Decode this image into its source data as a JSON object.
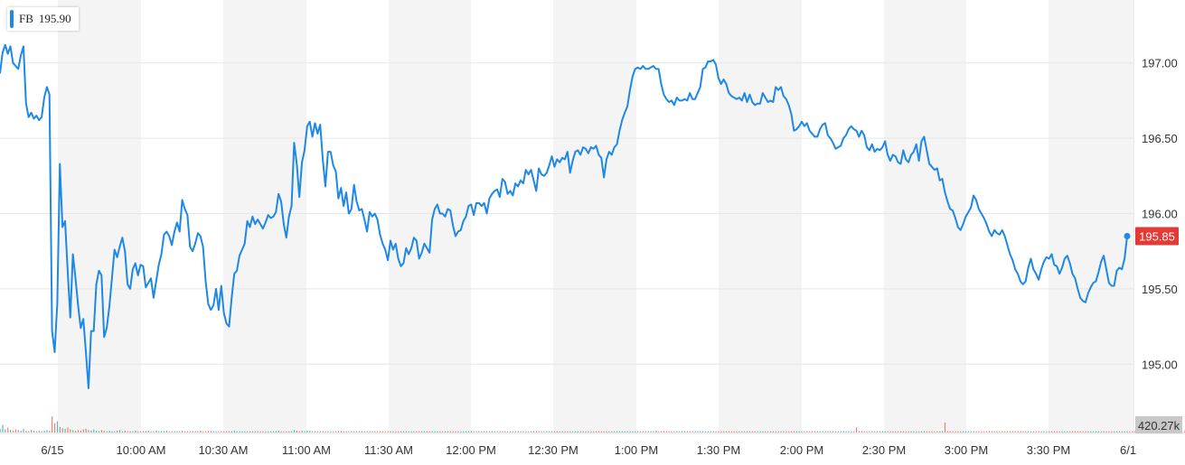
{
  "ticker": {
    "symbol": "FB",
    "value": "195.90",
    "color": "#1e88e5"
  },
  "colors": {
    "line": "#1e88e5",
    "band": "#f4f4f4",
    "grid": "#e6e6e6",
    "badge": "#e53935",
    "volume_up": "#26a69a",
    "volume_down": "#ef5350",
    "volume_badge": "#c8c8c8"
  },
  "chart_data": {
    "type": "line",
    "series": [
      {
        "name": "FB",
        "values": [
          196.93,
          197.07,
          197.12,
          197.06,
          197.11,
          197.0,
          196.98,
          196.96,
          197.05,
          197.11,
          196.73,
          196.64,
          196.67,
          196.63,
          196.65,
          196.62,
          196.64,
          196.77,
          196.84,
          196.79,
          195.22,
          195.08,
          195.4,
          196.33,
          195.91,
          195.95,
          195.62,
          195.31,
          195.73,
          195.57,
          195.39,
          195.24,
          195.3,
          195.08,
          194.84,
          195.22,
          195.22,
          195.53,
          195.62,
          195.59,
          195.18,
          195.24,
          195.38,
          195.57,
          195.76,
          195.71,
          195.78,
          195.84,
          195.75,
          195.53,
          195.5,
          195.63,
          195.67,
          195.59,
          195.66,
          195.65,
          195.51,
          195.54,
          195.57,
          195.44,
          195.55,
          195.66,
          195.73,
          195.86,
          195.88,
          195.85,
          195.79,
          195.88,
          195.94,
          195.88,
          196.09,
          196.03,
          195.99,
          195.78,
          195.75,
          195.8,
          195.87,
          195.85,
          195.78,
          195.55,
          195.4,
          195.36,
          195.39,
          195.5,
          195.36,
          195.52,
          195.34,
          195.27,
          195.25,
          195.44,
          195.6,
          195.62,
          195.72,
          195.76,
          195.8,
          195.95,
          195.91,
          195.98,
          195.93,
          195.96,
          195.93,
          195.9,
          195.94,
          195.99,
          195.97,
          195.98,
          196.01,
          196.13,
          196.08,
          195.93,
          195.84,
          195.98,
          196.05,
          196.47,
          196.33,
          196.11,
          196.34,
          196.42,
          196.58,
          196.61,
          196.51,
          196.6,
          196.53,
          196.59,
          196.36,
          196.18,
          196.41,
          196.41,
          196.32,
          196.28,
          196.1,
          196.17,
          196.05,
          196.14,
          196.0,
          196.03,
          196.19,
          196.08,
          196.02,
          196.03,
          195.96,
          195.88,
          196.01,
          195.98,
          196.0,
          195.96,
          195.86,
          195.8,
          195.76,
          195.69,
          195.82,
          195.76,
          195.8,
          195.7,
          195.65,
          195.67,
          195.77,
          195.73,
          195.77,
          195.84,
          195.82,
          195.7,
          195.74,
          195.8,
          195.77,
          195.74,
          195.96,
          196.03,
          196.06,
          196.0,
          196.0,
          195.98,
          196.03,
          196.02,
          195.92,
          195.85,
          195.88,
          195.89,
          195.95,
          195.98,
          196.05,
          196.06,
          195.99,
          196.07,
          196.07,
          196.05,
          196.07,
          196.0,
          196.1,
          196.13,
          196.15,
          196.16,
          196.11,
          196.23,
          196.21,
          196.13,
          196.15,
          196.12,
          196.2,
          196.18,
          196.22,
          196.2,
          196.29,
          196.26,
          196.29,
          196.22,
          196.15,
          196.3,
          196.26,
          196.25,
          196.27,
          196.32,
          196.38,
          196.31,
          196.36,
          196.34,
          196.37,
          196.36,
          196.41,
          196.27,
          196.35,
          196.41,
          196.42,
          196.39,
          196.44,
          196.43,
          196.4,
          196.44,
          196.43,
          196.45,
          196.39,
          196.37,
          196.24,
          196.36,
          196.41,
          196.39,
          196.44,
          196.46,
          196.55,
          196.62,
          196.67,
          196.71,
          196.82,
          196.91,
          196.96,
          196.97,
          196.96,
          196.98,
          196.96,
          196.96,
          196.97,
          196.98,
          196.96,
          196.96,
          196.86,
          196.79,
          196.76,
          196.74,
          196.75,
          196.72,
          196.77,
          196.75,
          196.75,
          196.76,
          196.75,
          196.8,
          196.76,
          196.76,
          196.8,
          196.84,
          196.96,
          196.97,
          197.01,
          197.01,
          197.02,
          196.99,
          196.9,
          196.86,
          196.89,
          196.86,
          196.8,
          196.78,
          196.77,
          196.76,
          196.77,
          196.75,
          196.8,
          196.74,
          196.79,
          196.74,
          196.72,
          196.73,
          196.73,
          196.8,
          196.77,
          196.74,
          196.75,
          196.74,
          196.84,
          196.82,
          196.84,
          196.78,
          196.76,
          196.72,
          196.66,
          196.55,
          196.56,
          196.58,
          196.61,
          196.58,
          196.6,
          196.55,
          196.53,
          196.51,
          196.51,
          196.56,
          196.59,
          196.6,
          196.52,
          196.5,
          196.47,
          196.43,
          196.44,
          196.45,
          196.5,
          196.52,
          196.56,
          196.58,
          196.56,
          196.55,
          196.51,
          196.55,
          196.52,
          196.44,
          196.42,
          196.46,
          196.41,
          196.43,
          196.42,
          196.44,
          196.48,
          196.39,
          196.35,
          196.39,
          196.38,
          196.34,
          196.33,
          196.42,
          196.36,
          196.34,
          196.39,
          196.41,
          196.46,
          196.35,
          196.48,
          196.51,
          196.42,
          196.33,
          196.31,
          196.29,
          196.3,
          196.22,
          196.23,
          196.14,
          196.08,
          196.03,
          196.02,
          195.97,
          195.91,
          195.89,
          195.93,
          195.98,
          196.01,
          196.04,
          196.12,
          196.09,
          196.03,
          196.0,
          195.97,
          195.93,
          195.88,
          195.85,
          195.89,
          195.87,
          195.86,
          195.89,
          195.85,
          195.79,
          195.73,
          195.69,
          195.63,
          195.6,
          195.55,
          195.53,
          195.55,
          195.64,
          195.7,
          195.63,
          195.6,
          195.56,
          195.63,
          195.68,
          195.71,
          195.7,
          195.73,
          195.66,
          195.65,
          195.6,
          195.64,
          195.7,
          195.72,
          195.67,
          195.6,
          195.57,
          195.5,
          195.44,
          195.42,
          195.41,
          195.47,
          195.51,
          195.54,
          195.55,
          195.61,
          195.68,
          195.72,
          195.63,
          195.54,
          195.52,
          195.52,
          195.62,
          195.64,
          195.63,
          195.7,
          195.85
        ]
      },
      {
        "name": "Volume",
        "values": [
          6,
          12,
          5,
          8,
          4,
          3,
          5,
          4,
          3,
          6,
          3,
          2,
          4,
          3,
          2,
          3,
          2,
          3,
          4,
          3,
          26,
          15,
          18,
          9,
          7,
          6,
          8,
          5,
          4,
          3,
          4,
          3,
          5,
          6,
          4,
          3,
          5,
          3,
          2,
          4,
          3,
          2,
          3,
          2,
          2,
          3,
          4,
          2,
          3,
          2,
          2,
          2,
          3,
          2,
          2,
          2,
          2,
          3,
          2,
          2,
          3,
          2,
          2,
          2,
          3,
          2,
          2,
          2,
          2,
          2,
          3,
          2,
          2,
          2,
          2,
          2,
          2,
          3,
          2,
          2,
          2,
          2,
          2,
          2,
          2,
          2,
          2,
          2,
          2,
          2,
          3,
          2,
          2,
          2,
          2,
          2,
          2,
          2,
          2,
          2,
          2,
          2,
          2,
          2,
          2,
          2,
          2,
          3,
          2,
          2,
          2,
          2,
          2,
          4,
          3,
          2,
          3,
          2,
          3,
          3,
          2,
          2,
          2,
          2,
          2,
          2,
          2,
          2,
          2,
          2,
          2,
          2,
          2,
          2,
          2,
          2,
          2,
          2,
          2,
          2,
          2,
          2,
          2,
          2,
          2,
          2,
          2,
          2,
          2,
          2,
          2,
          2,
          2,
          2,
          2,
          2,
          2,
          2,
          2,
          2,
          2,
          2,
          2,
          2,
          2,
          2,
          2,
          2,
          2,
          2,
          2,
          2,
          2,
          2,
          2,
          2,
          2,
          2,
          2,
          2,
          2,
          2,
          2,
          2,
          2,
          2,
          2,
          2,
          2,
          2,
          2,
          2,
          2,
          2,
          2,
          2,
          2,
          2,
          2,
          2,
          2,
          2,
          2,
          2,
          2,
          2,
          2,
          2,
          2,
          2,
          2,
          2,
          2,
          2,
          2,
          2,
          2,
          2,
          2,
          2,
          2,
          2,
          2,
          2,
          2,
          2,
          2,
          2,
          2,
          2,
          2,
          2,
          2,
          2,
          2,
          2,
          2,
          2,
          2,
          2,
          2,
          2,
          2,
          2,
          2,
          2,
          2,
          2,
          2,
          2,
          2,
          2,
          3,
          2,
          2,
          2,
          2,
          2,
          2,
          2,
          2,
          2,
          2,
          2,
          2,
          2,
          2,
          2,
          2,
          2,
          2,
          2,
          2,
          2,
          2,
          2,
          2,
          2,
          2,
          2,
          2,
          2,
          2,
          2,
          2,
          2,
          2,
          2,
          2,
          2,
          2,
          2,
          2,
          2,
          2,
          2,
          2,
          2,
          2,
          2,
          2,
          2,
          2,
          2,
          2,
          2,
          2,
          2,
          2,
          2,
          2,
          2,
          2,
          2,
          2,
          2,
          2,
          2,
          2,
          2,
          2,
          2,
          2,
          2,
          2,
          2,
          2,
          2,
          2,
          8,
          2,
          2,
          2,
          2,
          2,
          2,
          2,
          2,
          2,
          2,
          2,
          2,
          2,
          2,
          2,
          2,
          2,
          2,
          2,
          2,
          2,
          2,
          2,
          2,
          2,
          2,
          2,
          2,
          2,
          2,
          2,
          2,
          2,
          16,
          2,
          2,
          2,
          2,
          2,
          2,
          2,
          2,
          2,
          2,
          2,
          2,
          2,
          2,
          2,
          2,
          2,
          2,
          2,
          2,
          2,
          2,
          2,
          2,
          2,
          2,
          2,
          2,
          2,
          2,
          2,
          2,
          2,
          2,
          2,
          2,
          2,
          2,
          2,
          2,
          2,
          2,
          2,
          2,
          2,
          2,
          2,
          2,
          2,
          2,
          2,
          2,
          2,
          2,
          2,
          2,
          2,
          2,
          2,
          2,
          2,
          2,
          2,
          2,
          2,
          2,
          2,
          2,
          2,
          2,
          2,
          2,
          2,
          2,
          2,
          2,
          2,
          2,
          2,
          2,
          2,
          2,
          2,
          2,
          2,
          2,
          2,
          2,
          2,
          2,
          2,
          2,
          2,
          2,
          2,
          3,
          4,
          6,
          10
        ]
      }
    ],
    "x_ticks": [
      "6/15",
      "10:00 AM",
      "10:30 AM",
      "11:00 AM",
      "11:30 AM",
      "12:00 PM",
      "12:30 PM",
      "1:00 PM",
      "1:30 PM",
      "2:00 PM",
      "2:30 PM",
      "3:00 PM",
      "3:30 PM",
      "6/1"
    ],
    "y_ticks": [
      "195.00",
      "195.50",
      "196.00",
      "196.50",
      "197.00"
    ],
    "ylim": [
      194.72,
      197.22
    ],
    "current_price_label": "195.85",
    "volume_label": "420.27k",
    "grid": true,
    "title": "",
    "xlabel": "",
    "ylabel": ""
  }
}
